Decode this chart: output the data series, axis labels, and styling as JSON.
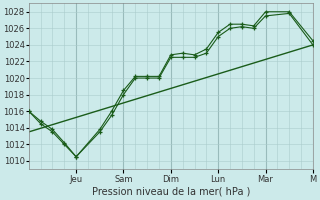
{
  "bg_color": "#cceaea",
  "line_color": "#1a5c1a",
  "grid_color": "#aacccc",
  "major_grid_color": "#99bbbb",
  "xlabel": "Pression niveau de la mer( hPa )",
  "ylim": [
    1009,
    1029
  ],
  "yticks": [
    1010,
    1012,
    1014,
    1016,
    1018,
    1020,
    1022,
    1024,
    1026,
    1028
  ],
  "xlim": [
    0,
    24
  ],
  "major_day_positions": [
    4,
    8,
    12,
    16,
    20,
    24
  ],
  "major_day_labels": [
    "Jeu",
    "Sam",
    "Dim",
    "Lun",
    "Mar",
    "M"
  ],
  "series1_x": [
    0,
    1,
    2,
    3,
    4,
    6,
    7,
    8,
    9,
    10,
    11,
    12,
    13,
    14,
    15,
    16,
    17,
    18,
    19,
    20,
    22,
    24
  ],
  "series1_y": [
    1016,
    1014.5,
    1013.5,
    1012.0,
    1010.5,
    1013.5,
    1015.5,
    1018.0,
    1020.0,
    1020.0,
    1020.0,
    1022.5,
    1022.5,
    1022.5,
    1023.0,
    1025.0,
    1026.0,
    1026.2,
    1026.0,
    1027.5,
    1027.8,
    1024.0
  ],
  "series2_x": [
    0,
    1,
    2,
    3,
    4,
    6,
    7,
    8,
    9,
    10,
    11,
    12,
    13,
    14,
    15,
    16,
    17,
    18,
    19,
    20,
    22,
    24
  ],
  "series2_y": [
    1016,
    1014.8,
    1013.8,
    1012.2,
    1010.5,
    1013.8,
    1016.0,
    1018.5,
    1020.2,
    1020.2,
    1020.2,
    1022.8,
    1023.0,
    1022.8,
    1023.5,
    1025.5,
    1026.5,
    1026.5,
    1026.3,
    1028.0,
    1028.0,
    1024.5
  ],
  "trend_x": [
    0,
    24
  ],
  "trend_y": [
    1013.5,
    1024.0
  ],
  "figsize": [
    3.2,
    2.0
  ],
  "dpi": 100
}
